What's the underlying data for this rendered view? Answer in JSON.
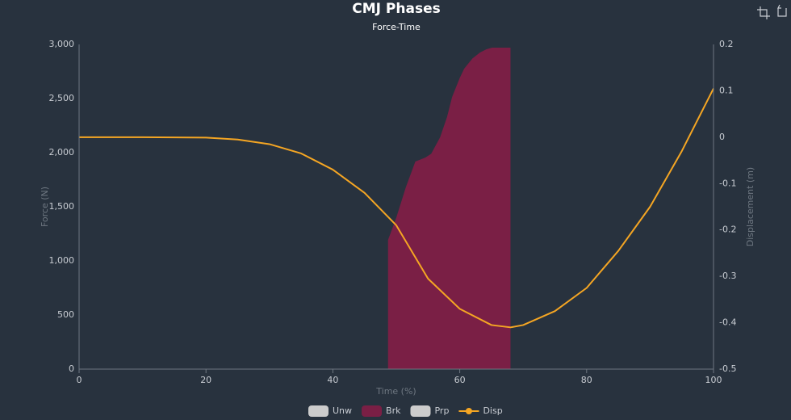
{
  "chart_data": {
    "type": "line",
    "title": "CMJ Phases",
    "subtitle": "Force-Time",
    "x_label": "Time (%)",
    "y_label": "Force (N)",
    "y2_label": "Displacement (m)",
    "xlim": [
      0,
      100
    ],
    "xticks": [
      0,
      20,
      40,
      60,
      80,
      100
    ],
    "ylim": [
      0,
      3000
    ],
    "yticks": [
      0,
      500,
      {
        "value": 1000,
        "label": "1,000"
      },
      {
        "value": 1500,
        "label": "1,500"
      },
      {
        "value": 2000,
        "label": "2,000"
      },
      {
        "value": 2500,
        "label": "2,500"
      },
      {
        "value": 3000,
        "label": "3,000"
      }
    ],
    "y2lim": [
      -0.5,
      0.2
    ],
    "y2ticks": [
      -0.5,
      -0.4,
      -0.3,
      -0.2,
      -0.1,
      0,
      0.1,
      0.2
    ],
    "grid": false,
    "series": [
      {
        "name": "Unw",
        "color": "#cccccc",
        "hidden": true
      },
      {
        "name": "Brk",
        "color": "#7a1f45",
        "kind": "area",
        "x": [
          48.7,
          50,
          51.5,
          53,
          54.6,
          55.5,
          56.9,
          58,
          58.8,
          60,
          60.7,
          62,
          63.2,
          64.2,
          65.1,
          66.5,
          68
        ],
        "values": [
          1194,
          1400,
          1680,
          1918,
          1955,
          1990,
          2142,
          2330,
          2515,
          2690,
          2776,
          2870,
          2925,
          2955,
          2970,
          2970,
          2970
        ]
      },
      {
        "name": "Prp",
        "color": "#cccccc",
        "hidden": true
      },
      {
        "name": "Disp",
        "color": "#f5a623",
        "kind": "line",
        "axis": "y2",
        "x": [
          0,
          10,
          20,
          25,
          30,
          35,
          40,
          45,
          50,
          55,
          60,
          65,
          68,
          70,
          75,
          80,
          85,
          90,
          95,
          100
        ],
        "values": [
          0,
          0,
          -0.001,
          -0.005,
          -0.015,
          -0.035,
          -0.07,
          -0.12,
          -0.19,
          -0.305,
          -0.37,
          -0.405,
          -0.41,
          -0.405,
          -0.375,
          -0.325,
          -0.245,
          -0.15,
          -0.03,
          0.105
        ]
      }
    ]
  }
}
